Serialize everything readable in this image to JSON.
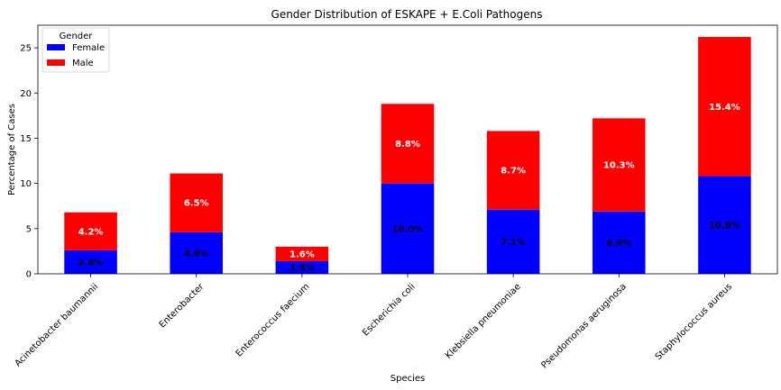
{
  "chart_data": {
    "type": "bar",
    "stacked": true,
    "title": "Gender Distribution of ESKAPE + E.Coli Pathogens",
    "xlabel": "Species",
    "ylabel": "Percentage of Cases",
    "ylim": [
      0,
      27.5
    ],
    "yticks": [
      "0",
      "5",
      "10",
      "15",
      "20",
      "25"
    ],
    "grid": false,
    "legend": {
      "title": "Gender",
      "placement": "top-left"
    },
    "categories": [
      "Acinetobacter baumannii",
      "Enterobacter",
      "Enterococcus faecium",
      "Escherichia coli",
      "Klebsiella pneumoniae",
      "Pseudomonas aeruginosa",
      "Staphylococcus aureus"
    ],
    "series": [
      {
        "name": "Female",
        "color": "#0000ff",
        "label_color": "#000000",
        "values": [
          2.6,
          4.6,
          1.4,
          10.0,
          7.1,
          6.9,
          10.8
        ],
        "labels": [
          "2.6%",
          "4.6%",
          "1.4%",
          "10.0%",
          "7.1%",
          "6.9%",
          "10.8%"
        ]
      },
      {
        "name": "Male",
        "color": "#ff0000",
        "label_color": "#ffffff",
        "values": [
          4.2,
          6.5,
          1.6,
          8.8,
          8.7,
          10.3,
          15.4
        ],
        "labels": [
          "4.2%",
          "6.5%",
          "1.6%",
          "8.8%",
          "8.7%",
          "10.3%",
          "15.4%"
        ]
      }
    ]
  }
}
